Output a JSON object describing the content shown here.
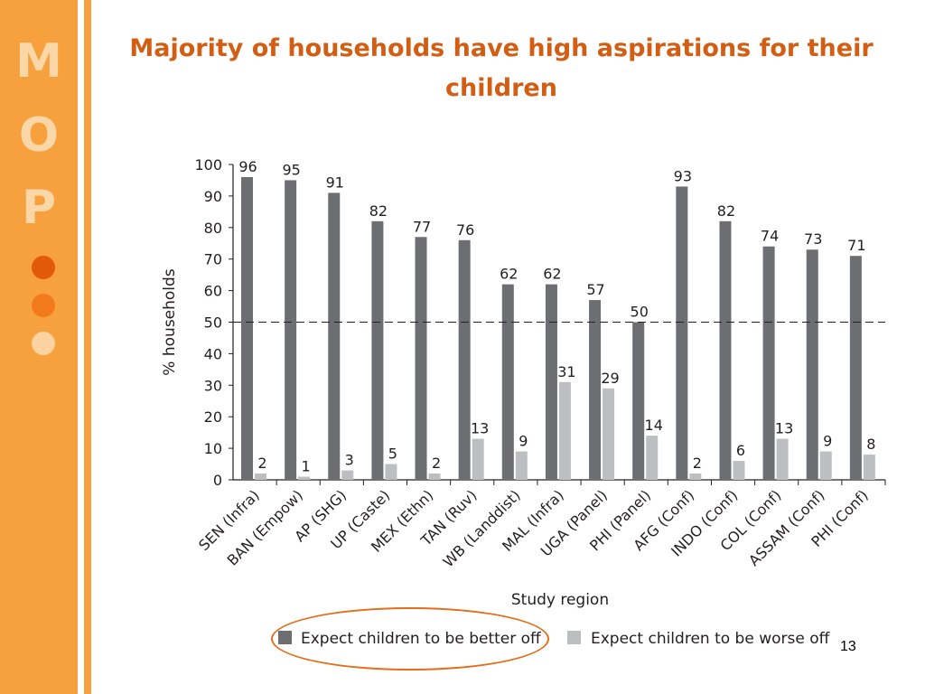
{
  "slide": {
    "title": "Majority of households have high aspirations for their children",
    "page_number": "13",
    "logo_letters": [
      "M",
      "O",
      "P"
    ],
    "accent_color": "#f7a13e",
    "title_color": "#d35d12"
  },
  "chart_data": {
    "type": "bar",
    "title": "",
    "xlabel": "Study region",
    "ylabel": "% households",
    "ylim": [
      0,
      100
    ],
    "yticks": [
      0,
      10,
      20,
      30,
      40,
      50,
      60,
      70,
      80,
      90,
      100
    ],
    "reference_line": 50,
    "categories": [
      "SEN (Infra)",
      "BAN (Empow)",
      "AP (SHG)",
      "UP (Caste)",
      "MEX (Ethn)",
      "TAN (Ruv)",
      "WB (Landdist)",
      "MAL (Infra)",
      "UGA (Panel)",
      "PHI (Panel)",
      "AFG (Conf)",
      "INDO (Conf)",
      "COL (Conf)",
      "ASSAM (Conf)",
      "PHI (Conf)"
    ],
    "series": [
      {
        "name": "Expect children to be better off",
        "color": "#6d6e71",
        "values": [
          96,
          95,
          91,
          82,
          77,
          76,
          62,
          62,
          57,
          50,
          93,
          82,
          74,
          73,
          71
        ]
      },
      {
        "name": "Expect children to be worse off",
        "color": "#bcbec0",
        "values": [
          2,
          1,
          3,
          5,
          2,
          13,
          9,
          31,
          29,
          14,
          2,
          6,
          13,
          9,
          8
        ]
      }
    ],
    "legend_position": "bottom"
  }
}
